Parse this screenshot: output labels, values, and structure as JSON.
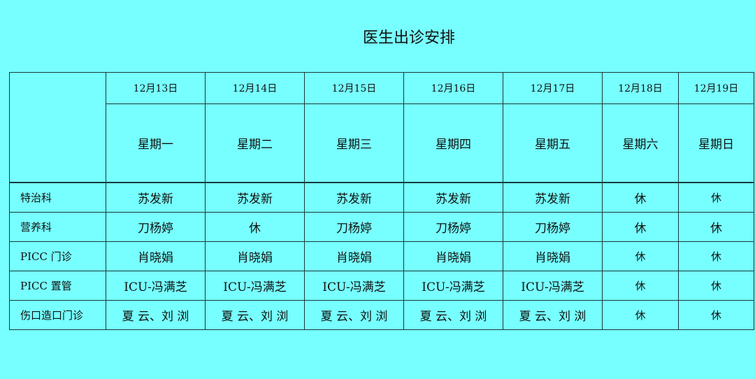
{
  "title": "医生出诊安排",
  "columns": [
    {
      "date": "12月13日",
      "weekday": "星期一"
    },
    {
      "date": "12月14日",
      "weekday": "星期二"
    },
    {
      "date": "12月15日",
      "weekday": "星期三"
    },
    {
      "date": "12月16日",
      "weekday": "星期四"
    },
    {
      "date": "12月17日",
      "weekday": "星期五"
    },
    {
      "date": "12月18日",
      "weekday": "星期六"
    },
    {
      "date": "12月19日",
      "weekday": "星期日"
    }
  ],
  "rows": [
    {
      "dept": "特治科",
      "cells": [
        "苏发新",
        "苏发新",
        "苏发新",
        "苏发新",
        "苏发新",
        "休",
        "休"
      ]
    },
    {
      "dept": "营养科",
      "cells": [
        "刀杨婷",
        "休",
        "刀杨婷",
        "刀杨婷",
        "刀杨婷",
        "休",
        "休"
      ]
    },
    {
      "dept": "PICC 门诊",
      "cells": [
        "肖晓娟",
        "肖晓娟",
        "肖晓娟",
        "肖晓娟",
        "肖晓娟",
        "休",
        "休"
      ]
    },
    {
      "dept": "PICC 置管",
      "cells": [
        "ICU-冯满芝",
        "ICU-冯满芝",
        "ICU-冯满芝",
        "ICU-冯满芝",
        "ICU-冯满芝",
        "休",
        "休"
      ]
    },
    {
      "dept": "伤口造口门诊",
      "cells": [
        "夏 云、刘 浏",
        "夏 云、刘 浏",
        "夏 云、刘 浏",
        "夏 云、刘 浏",
        "夏 云、刘 浏",
        "休",
        "休"
      ]
    }
  ]
}
